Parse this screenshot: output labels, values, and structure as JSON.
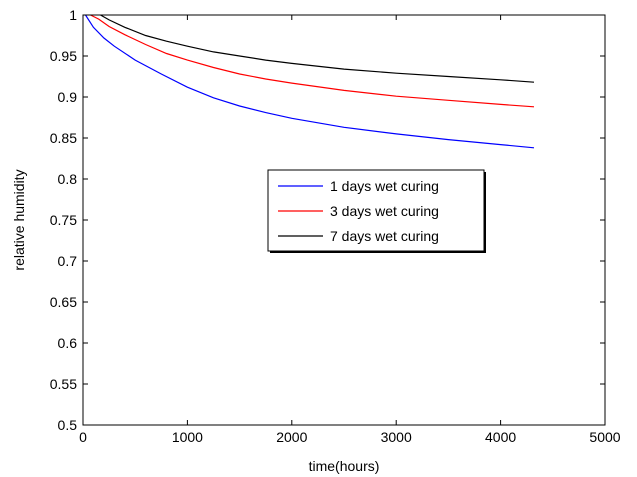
{
  "chart_data": {
    "type": "line",
    "title": "",
    "xlabel": "time(hours)",
    "ylabel": "relative humidity",
    "xlim": [
      0,
      5000
    ],
    "ylim": [
      0.5,
      1
    ],
    "xticks": [
      0,
      1000,
      2000,
      3000,
      4000,
      5000
    ],
    "xtick_labels": [
      "0",
      "1000",
      "2000",
      "3000",
      "4000",
      "5000"
    ],
    "yticks": [
      0.5,
      0.55,
      0.6,
      0.65,
      0.7,
      0.75,
      0.8,
      0.85,
      0.9,
      0.95,
      1
    ],
    "ytick_labels": [
      "0.5",
      "0.55",
      "0.6",
      "0.65",
      "0.7",
      "0.75",
      "0.8",
      "0.85",
      "0.9",
      "0.95",
      "1"
    ],
    "grid": false,
    "legend_position": "center-right",
    "series": [
      {
        "name": "1 days wet curing",
        "color": "#0000ff",
        "x": [
          24,
          100,
          200,
          300,
          500,
          750,
          1000,
          1250,
          1500,
          1750,
          2000,
          2500,
          3000,
          3500,
          4000,
          4320
        ],
        "y": [
          1.0,
          0.985,
          0.972,
          0.962,
          0.945,
          0.928,
          0.912,
          0.899,
          0.889,
          0.881,
          0.874,
          0.863,
          0.855,
          0.848,
          0.842,
          0.838
        ]
      },
      {
        "name": "3 days wet curing",
        "color": "#ff0000",
        "x": [
          72,
          150,
          250,
          400,
          600,
          800,
          1000,
          1250,
          1500,
          1750,
          2000,
          2500,
          3000,
          3500,
          4000,
          4320
        ],
        "y": [
          1.0,
          0.995,
          0.986,
          0.976,
          0.964,
          0.953,
          0.945,
          0.936,
          0.928,
          0.922,
          0.917,
          0.908,
          0.901,
          0.896,
          0.891,
          0.888
        ]
      },
      {
        "name": "7 days wet curing",
        "color": "#000000",
        "x": [
          168,
          250,
          400,
          600,
          800,
          1000,
          1250,
          1500,
          1750,
          2000,
          2500,
          3000,
          3500,
          4000,
          4320
        ],
        "y": [
          1.0,
          0.994,
          0.985,
          0.975,
          0.968,
          0.962,
          0.955,
          0.95,
          0.945,
          0.941,
          0.934,
          0.929,
          0.925,
          0.921,
          0.918
        ]
      }
    ]
  }
}
